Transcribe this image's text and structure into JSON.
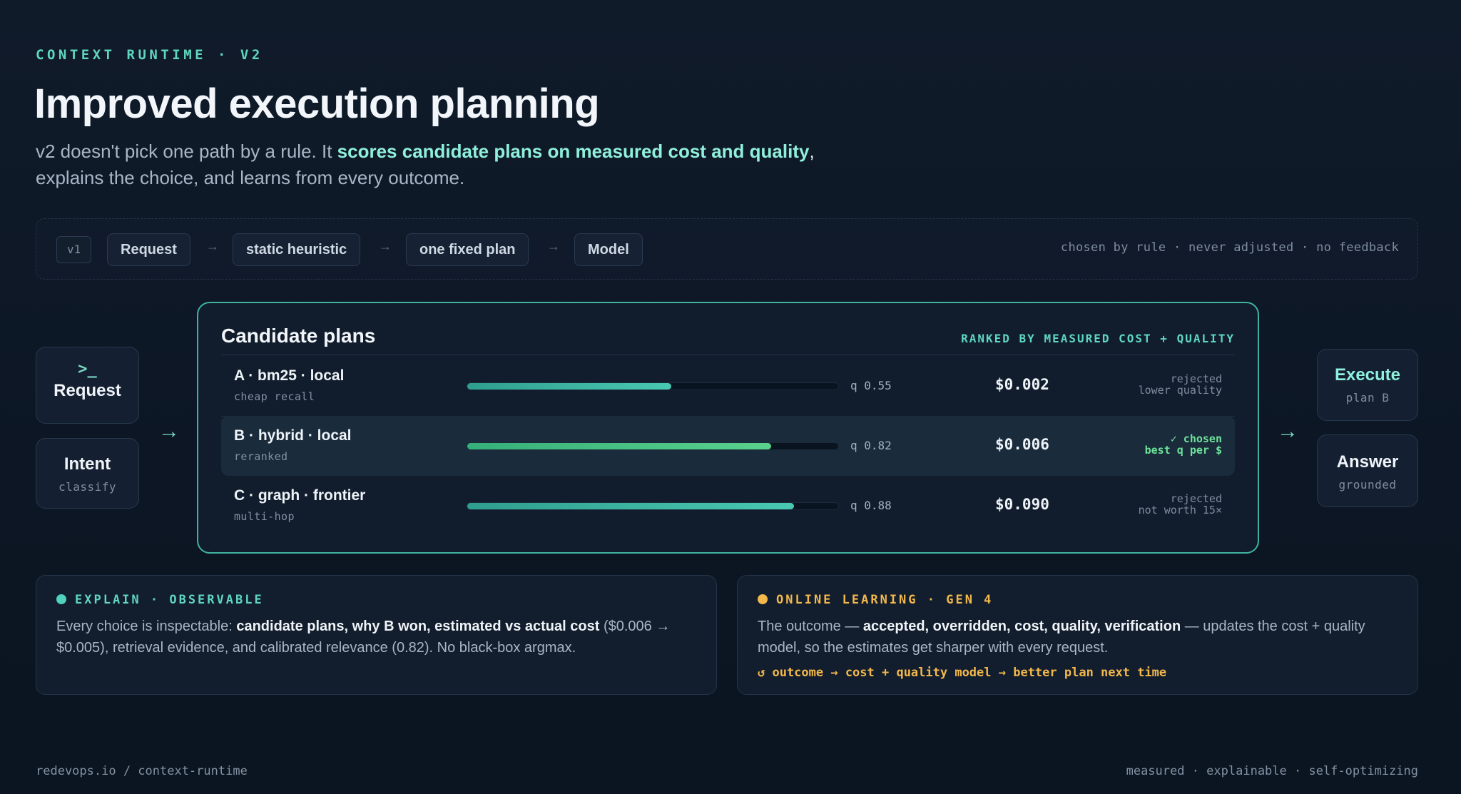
{
  "header": {
    "eyebrow": "CONTEXT RUNTIME · V2",
    "title": "Improved execution planning",
    "subtitle_pre": "v2 doesn't pick one path by a rule. It ",
    "subtitle_hl": "scores candidate plans on measured cost and quality",
    "subtitle_comma": ",",
    "subtitle_post": "explains the choice, and learns from every outcome."
  },
  "v1": {
    "tag": "v1",
    "chips": [
      "Request",
      "static heuristic",
      "one fixed plan",
      "Model"
    ],
    "arrow": "→",
    "note": "chosen by rule · never adjusted · no feedback"
  },
  "left": {
    "request_icon": ">_",
    "request_label": "Request",
    "intent_label": "Intent",
    "intent_sub": "classify"
  },
  "right": {
    "execute_label": "Execute",
    "execute_sub": "plan B",
    "answer_label": "Answer",
    "answer_sub": "grounded"
  },
  "flow_arrow": "→",
  "plans": {
    "title": "Candidate plans",
    "tag": "RANKED BY MEASURED COST + QUALITY",
    "rows": [
      {
        "name": "A · bm25 · local",
        "desc": "cheap recall",
        "quality": 0.55,
        "q_label": "q 0.55",
        "cost": "$0.002",
        "verdict1": "rejected",
        "verdict2": "lower quality",
        "chosen": false
      },
      {
        "name": "B · hybrid · local",
        "desc": "reranked",
        "quality": 0.82,
        "q_label": "q 0.82",
        "cost": "$0.006",
        "verdict1": "✓ chosen",
        "verdict2": "best q per $",
        "chosen": true
      },
      {
        "name": "C · graph · frontier",
        "desc": "multi-hop",
        "quality": 0.88,
        "q_label": "q 0.88",
        "cost": "$0.090",
        "verdict1": "rejected",
        "verdict2": "not worth 15×",
        "chosen": false
      }
    ]
  },
  "explain": {
    "head": "EXPLAIN · OBSERVABLE",
    "color": "#4fd1bd",
    "t1": "Every choice is inspectable: ",
    "b1": "candidate plans, why B won, estimated vs actual cost",
    "t2": " ($0.006 → $0.005), retrieval evidence, and calibrated relevance (0.82). No black-box argmax."
  },
  "learning": {
    "head": "ONLINE LEARNING · GEN 4",
    "color": "#f2b84b",
    "t1": "The outcome — ",
    "b1": "accepted, overridden, cost, quality, verification",
    "t2": " — updates the cost + quality model, so the estimates get sharper with every request.",
    "loop": "↺ outcome → cost + quality model → better plan next time"
  },
  "footer": {
    "left": "redevops.io / context-runtime",
    "right": "measured · explainable · self-optimizing"
  }
}
